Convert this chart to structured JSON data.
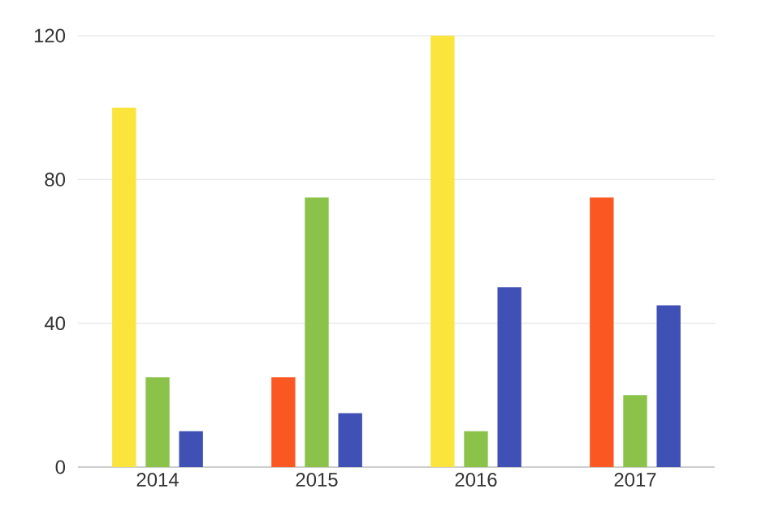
{
  "chart_data": {
    "type": "bar",
    "categories": [
      "2014",
      "2015",
      "2016",
      "2017"
    ],
    "series": [
      {
        "colors": [
          "#fbe43b",
          "#fb5722",
          "#fbe43b",
          "#fb5722"
        ],
        "values": [
          100,
          25,
          120,
          75
        ]
      },
      {
        "color": "#8bc34a",
        "values": [
          25,
          75,
          10,
          20
        ]
      },
      {
        "color": "#3f51b5",
        "values": [
          10,
          15,
          50,
          45
        ]
      }
    ],
    "ylim": [
      0,
      120
    ],
    "yticks": [
      0,
      40,
      80,
      120
    ],
    "grid": "y"
  }
}
